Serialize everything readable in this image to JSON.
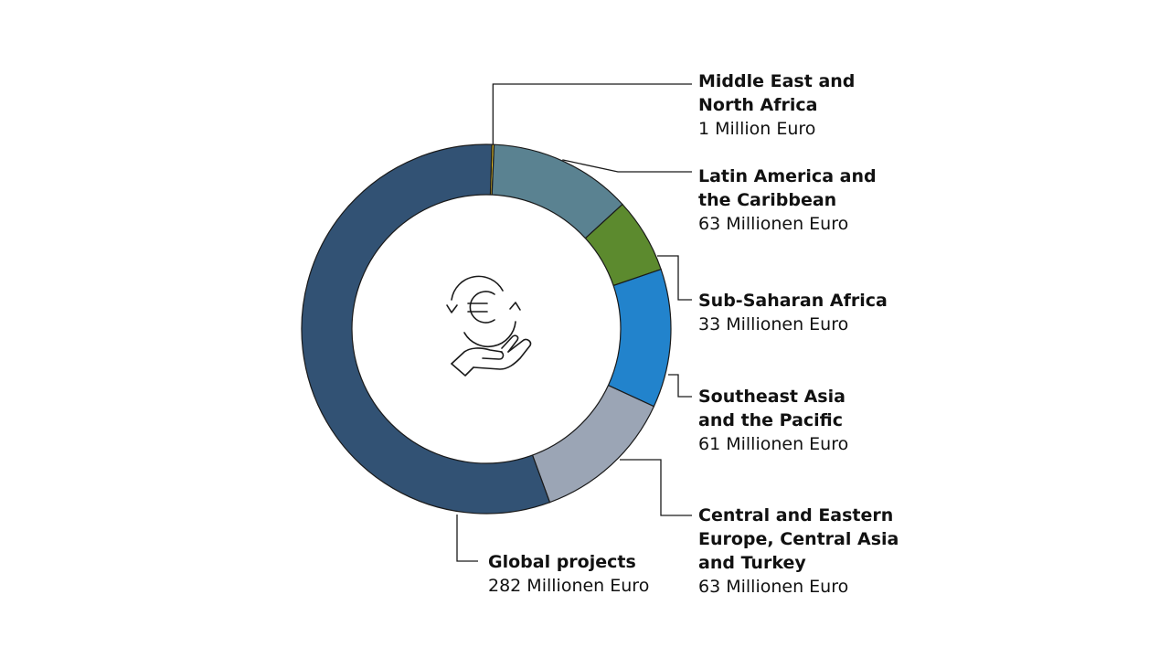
{
  "chart_data": {
    "type": "pie",
    "variant": "donut",
    "title": "",
    "center_icon": "euro-cycle-hand-icon",
    "slices": [
      {
        "name": "Middle East and\nNorth Africa",
        "value": 1,
        "value_label": "1 Million Euro",
        "color": "#e6c229"
      },
      {
        "name": "Latin America and\nthe Caribbean",
        "value": 63,
        "value_label": "63 Millionen Euro",
        "color": "#5a8291"
      },
      {
        "name": "Sub-Saharan Africa",
        "value": 33,
        "value_label": "33 Millionen Euro",
        "color": "#5c8a2e"
      },
      {
        "name": "Southeast Asia\nand the Pacific",
        "value": 61,
        "value_label": "61 Millionen Euro",
        "color": "#2283cc"
      },
      {
        "name": "Central and Eastern\nEurope, Central Asia\nand Turkey",
        "value": 63,
        "value_label": "63 Millionen Euro",
        "color": "#9ba5b5"
      },
      {
        "name": "Global projects",
        "value": 282,
        "value_label": "282 Millionen Euro",
        "color": "#325274"
      }
    ]
  }
}
